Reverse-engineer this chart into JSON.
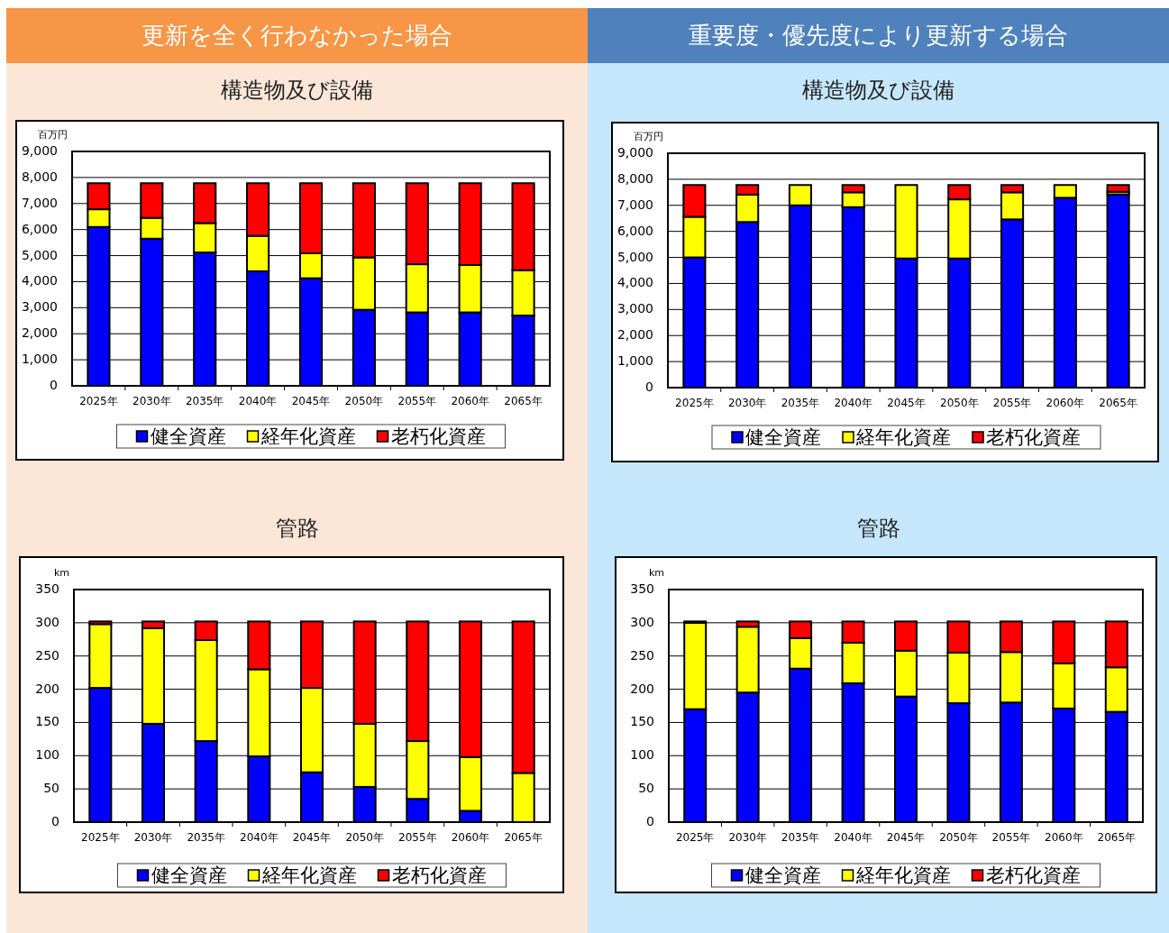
{
  "chart_data": [
    {
      "type": "bar",
      "title": "更新を全く行わなかった場合",
      "subtitle": "構造物及び設備",
      "ylabel": "百万円",
      "stacked": true,
      "grid": "y",
      "legend": "bottom",
      "categories": [
        "2025年",
        "2030年",
        "2035年",
        "2040年",
        "2045年",
        "2050年",
        "2055年",
        "2060年",
        "2065年"
      ],
      "ylim": [
        0,
        9000
      ],
      "yticks": [
        0,
        {
          "value": 1000,
          "label": "1,000"
        },
        {
          "value": 2000,
          "label": "2,000"
        },
        {
          "value": 3000,
          "label": "3,000"
        },
        {
          "value": 4000,
          "label": "4,000"
        },
        {
          "value": 5000,
          "label": "5,000"
        },
        {
          "value": 6000,
          "label": "6,000"
        },
        {
          "value": 7000,
          "label": "7,000"
        },
        {
          "value": 8000,
          "label": "8,000"
        },
        {
          "value": 9000,
          "label": "9,000"
        }
      ],
      "series": [
        {
          "name": "健全資産",
          "color": "#0000ff",
          "values": [
            6100,
            5650,
            5120,
            4400,
            4130,
            2920,
            2820,
            2820,
            2700
          ]
        },
        {
          "name": "経年化資産",
          "color": "#ffff00",
          "values": [
            680,
            800,
            1130,
            1360,
            960,
            2010,
            1850,
            1820,
            1740
          ]
        },
        {
          "name": "老朽化資産",
          "color": "#ff0000",
          "values": [
            1000,
            1330,
            1530,
            2020,
            2690,
            2850,
            3110,
            3140,
            3340
          ]
        }
      ]
    },
    {
      "type": "bar",
      "title": "重要度・優先度により更新する場合",
      "subtitle": "構造物及び設備",
      "ylabel": "百万円",
      "stacked": true,
      "grid": "y",
      "legend": "bottom",
      "categories": [
        "2025年",
        "2030年",
        "2035年",
        "2040年",
        "2045年",
        "2050年",
        "2055年",
        "2060年",
        "2065年"
      ],
      "ylim": [
        0,
        9000
      ],
      "yticks": [
        0,
        {
          "value": 1000,
          "label": "1,000"
        },
        {
          "value": 2000,
          "label": "2,000"
        },
        {
          "value": 3000,
          "label": "3,000"
        },
        {
          "value": 4000,
          "label": "4,000"
        },
        {
          "value": 5000,
          "label": "5,000"
        },
        {
          "value": 6000,
          "label": "6,000"
        },
        {
          "value": 7000,
          "label": "7,000"
        },
        {
          "value": 8000,
          "label": "8,000"
        },
        {
          "value": 9000,
          "label": "9,000"
        }
      ],
      "series": [
        {
          "name": "健全資産",
          "color": "#0000ff",
          "values": [
            5000,
            6360,
            7000,
            6930,
            4960,
            4960,
            6460,
            7290,
            7420
          ]
        },
        {
          "name": "経年化資産",
          "color": "#ffff00",
          "values": [
            1560,
            1050,
            780,
            570,
            2820,
            2270,
            1040,
            490,
            100
          ]
        },
        {
          "name": "老朽化資産",
          "color": "#ff0000",
          "values": [
            1220,
            370,
            0,
            280,
            0,
            550,
            280,
            0,
            260
          ]
        }
      ]
    },
    {
      "type": "bar",
      "title": "管路",
      "ylabel": "km",
      "stacked": true,
      "grid": "y",
      "legend": "bottom",
      "categories": [
        "2025年",
        "2030年",
        "2035年",
        "2040年",
        "2045年",
        "2050年",
        "2055年",
        "2060年",
        "2065年"
      ],
      "ylim": [
        0,
        350
      ],
      "yticks": [
        0,
        50,
        100,
        150,
        200,
        250,
        300,
        350
      ],
      "series": [
        {
          "name": "健全資産",
          "color": "#0000ff",
          "values": [
            202,
            148,
            122,
            99,
            75,
            53,
            35,
            17,
            0
          ]
        },
        {
          "name": "経年化資産",
          "color": "#ffff00",
          "values": [
            96,
            144,
            152,
            131,
            127,
            95,
            87,
            81,
            74
          ]
        },
        {
          "name": "老朽化資産",
          "color": "#ff0000",
          "values": [
            4,
            10,
            28,
            72,
            100,
            154,
            180,
            204,
            228
          ]
        }
      ]
    },
    {
      "type": "bar",
      "title": "管路",
      "ylabel": "km",
      "stacked": true,
      "grid": "y",
      "legend": "bottom",
      "categories": [
        "2025年",
        "2030年",
        "2035年",
        "2040年",
        "2045年",
        "2050年",
        "2055年",
        "2060年",
        "2065年"
      ],
      "ylim": [
        0,
        350
      ],
      "yticks": [
        0,
        50,
        100,
        150,
        200,
        250,
        300,
        350
      ],
      "series": [
        {
          "name": "健全資産",
          "color": "#0000ff",
          "values": [
            170,
            195,
            231,
            209,
            189,
            179,
            180,
            171,
            166
          ]
        },
        {
          "name": "経年化資産",
          "color": "#ffff00",
          "values": [
            130,
            99,
            46,
            61,
            69,
            76,
            76,
            68,
            67
          ]
        },
        {
          "name": "老朽化資産",
          "color": "#ff0000",
          "values": [
            2,
            8,
            25,
            32,
            44,
            47,
            46,
            63,
            69
          ]
        }
      ]
    }
  ]
}
